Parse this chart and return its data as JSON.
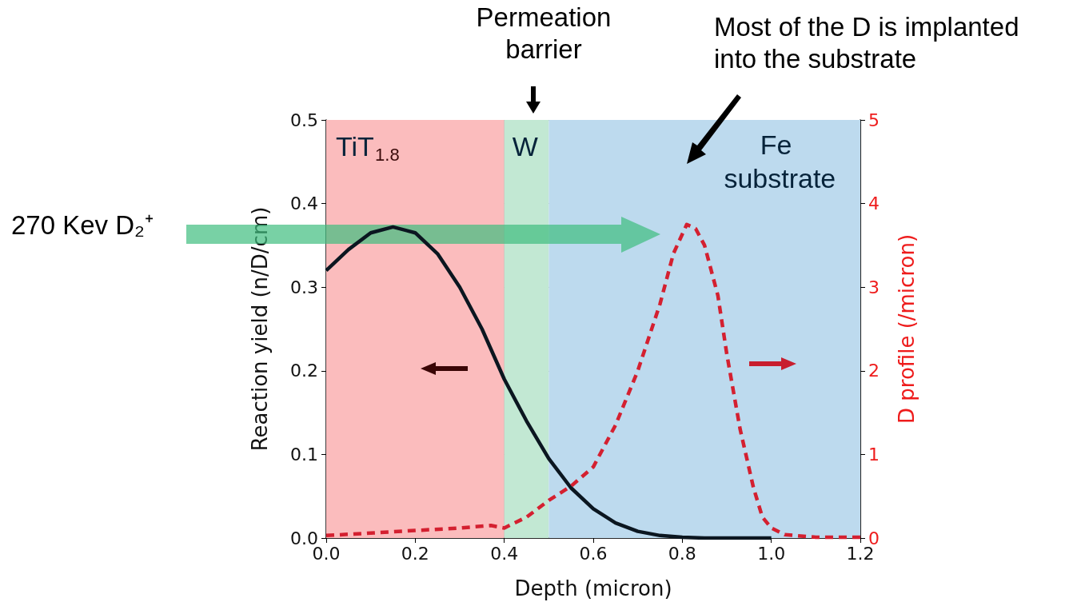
{
  "chart_data": {
    "type": "line",
    "xlabel": "Depth (micron)",
    "ylabel": "Reaction yield (n/D/cm)",
    "y2label": "D profile (/micron)",
    "annotations": [
      "270 Kev D₂⁺",
      "Permeation barrier",
      "Most of the D is implanted into the substrate"
    ],
    "series": [
      {
        "color": "#0b1620",
        "line_style": "solid",
        "x": [
          0,
          0.05,
          0.1,
          0.15,
          0.2,
          0.25,
          0.3,
          0.35,
          0.4,
          0.45,
          0.5,
          0.55,
          0.6,
          0.65,
          0.7,
          0.75,
          0.8,
          0.85,
          0.9,
          1.0
        ],
        "values": [
          0.32,
          0.345,
          0.365,
          0.372,
          0.365,
          0.34,
          0.3,
          0.25,
          0.19,
          0.14,
          0.095,
          0.06,
          0.035,
          0.018,
          0.008,
          0.003,
          0.001,
          0,
          0,
          0
        ]
      },
      {
        "color": "#d42030",
        "line_style": "dashed",
        "axis": "y2",
        "x": [
          0,
          0.1,
          0.2,
          0.3,
          0.37,
          0.4,
          0.45,
          0.5,
          0.55,
          0.6,
          0.65,
          0.7,
          0.75,
          0.78,
          0.81,
          0.83,
          0.85,
          0.88,
          0.9,
          0.93,
          0.96,
          0.98,
          1.0,
          1.03,
          1.1,
          1.2
        ],
        "values": [
          0.03,
          0.06,
          0.09,
          0.12,
          0.15,
          0.12,
          0.25,
          0.45,
          0.62,
          0.85,
          1.35,
          2.0,
          2.8,
          3.4,
          3.75,
          3.7,
          3.5,
          2.9,
          2.2,
          1.3,
          0.6,
          0.25,
          0.12,
          0.04,
          0.01,
          0.01
        ]
      }
    ],
    "bands": [
      {
        "axis": "x",
        "from": 0,
        "to": 0.4,
        "label": "TiT$_{1.8}$",
        "color": "#fbbcbd"
      },
      {
        "axis": "x",
        "from": 0.4,
        "to": 0.5,
        "label": "W",
        "color": "#c2e8d3"
      },
      {
        "axis": "x",
        "from": 0.5,
        "to": 1.2,
        "label": "Fe substrate",
        "color": "#bddaee"
      }
    ],
    "xlim": [
      0,
      1.2
    ],
    "xticks": [
      {
        "value": 0,
        "label": "0.0"
      },
      0.2,
      0.4,
      0.6,
      0.8,
      {
        "value": 1,
        "label": "1.0"
      },
      1.2
    ],
    "ylim": [
      0,
      0.5
    ],
    "yticks": [
      {
        "value": 0,
        "label": "0.0"
      },
      0.1,
      0.2,
      0.3,
      0.4,
      0.5
    ],
    "y2lim": [
      0,
      5
    ],
    "y2ticks": [
      0,
      1,
      2,
      3,
      4,
      5
    ],
    "grid": true,
    "marker": "none"
  }
}
